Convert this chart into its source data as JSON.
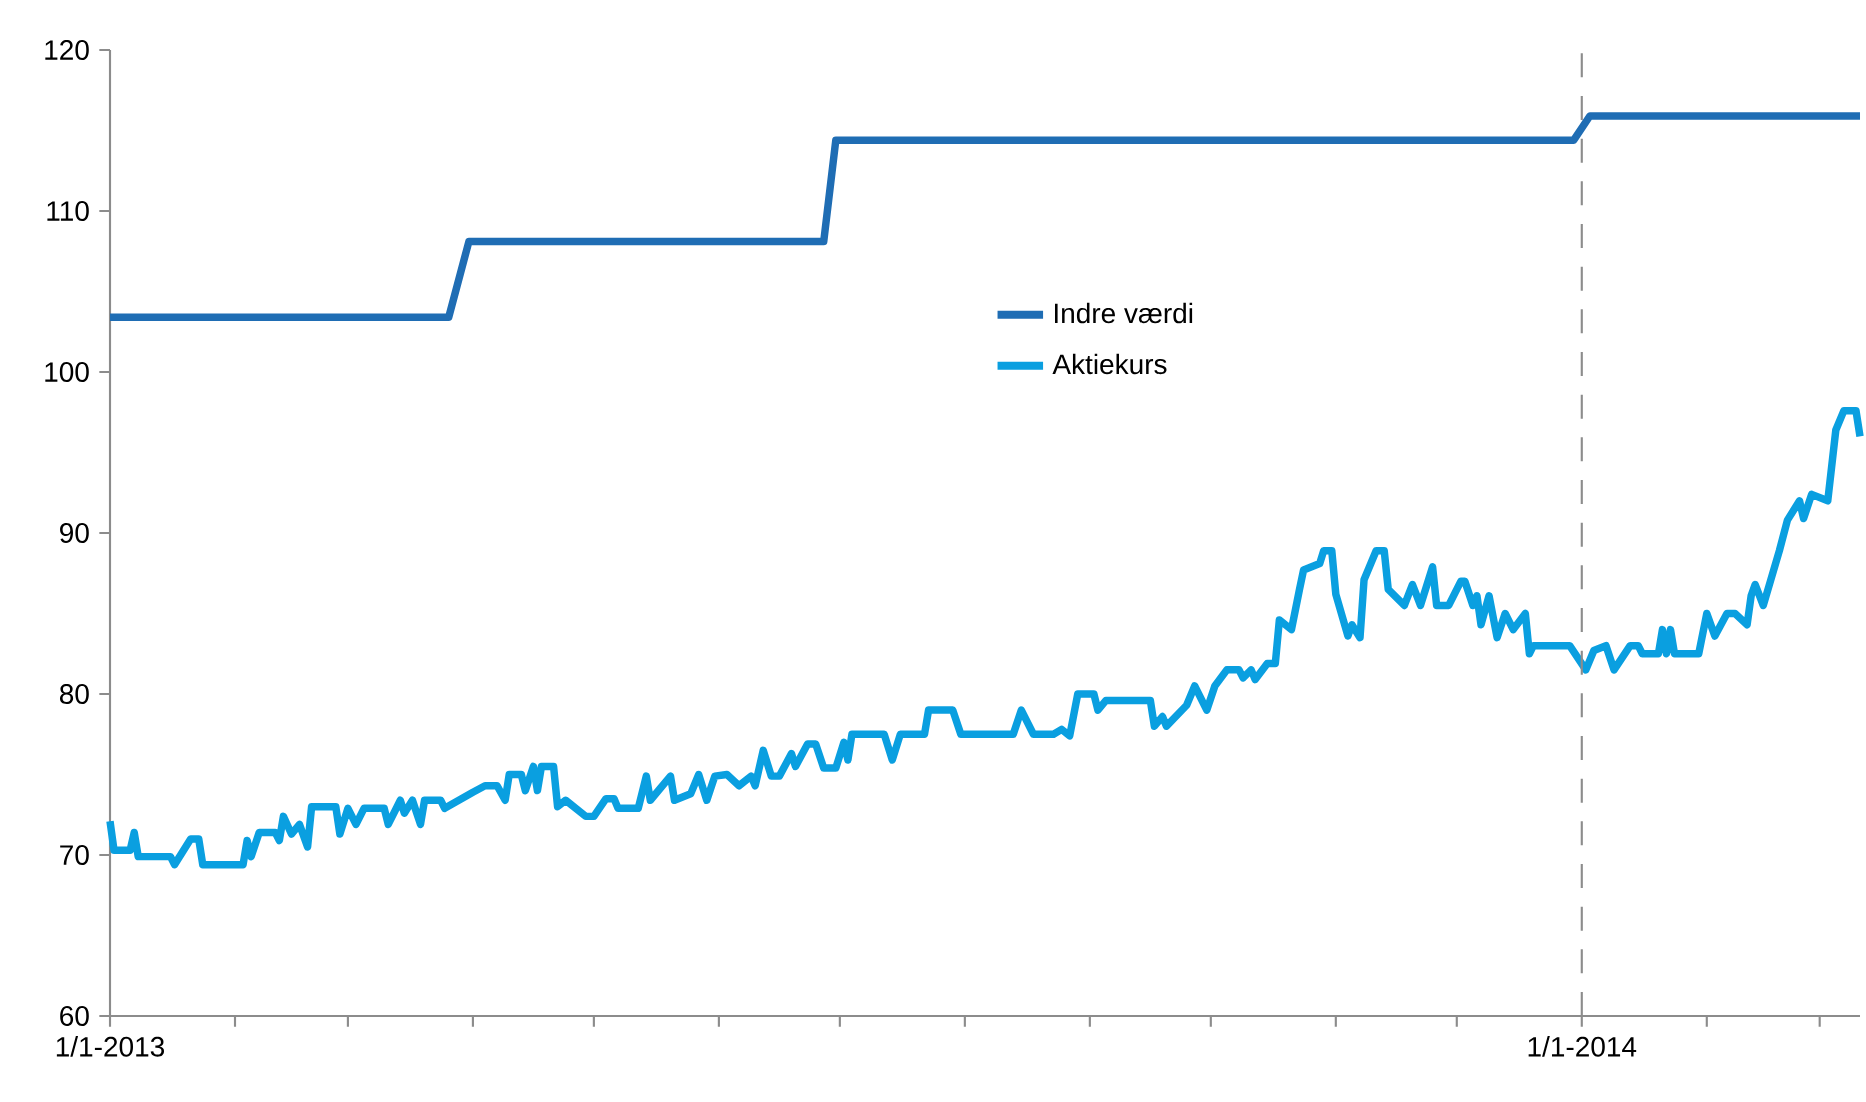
{
  "chart_data": {
    "type": "line",
    "xlim": [
      "2013-01-01",
      "2014-03-11"
    ],
    "ylim": [
      60,
      120
    ],
    "yticks": [
      60,
      70,
      80,
      90,
      100,
      110,
      120
    ],
    "xticks": [
      {
        "value": "2013-01-01",
        "label": "1/1-2013"
      },
      {
        "value": "2013-02-01",
        "label": null
      },
      {
        "value": "2013-03-01",
        "label": null
      },
      {
        "value": "2013-04-01",
        "label": null
      },
      {
        "value": "2013-05-01",
        "label": null
      },
      {
        "value": "2013-06-01",
        "label": null
      },
      {
        "value": "2013-07-01",
        "label": null
      },
      {
        "value": "2013-08-01",
        "label": null
      },
      {
        "value": "2013-09-01",
        "label": null
      },
      {
        "value": "2013-10-01",
        "label": null
      },
      {
        "value": "2013-11-01",
        "label": null
      },
      {
        "value": "2013-12-01",
        "label": null
      },
      {
        "value": "2014-01-01",
        "label": "1/1-2014"
      },
      {
        "value": "2014-02-01",
        "label": null
      },
      {
        "value": "2014-03-01",
        "label": null
      }
    ],
    "grid": false,
    "legend": "center",
    "marker": "none",
    "line_style": "solid",
    "ref_lines": [
      {
        "axis": "x",
        "value": "2014-01-01",
        "color": "#8c8c8c",
        "line_style": "dashed"
      }
    ],
    "series": [
      {
        "name": "Indre værdi",
        "color": "#1f6db4",
        "x": [
          "2013-01-01",
          "2013-03-26",
          "2013-03-31",
          "2013-06-27",
          "2013-06-30",
          "2013-12-30",
          "2014-01-03",
          "2014-03-11"
        ],
        "values": [
          103.4,
          103.4,
          108.1,
          108.1,
          114.4,
          114.4,
          115.9,
          115.9
        ]
      },
      {
        "name": "Aktiekurs",
        "color": "#0a9fe0",
        "x": [
          "2013-01-01",
          "2013-01-02",
          "2013-01-06",
          "2013-01-07",
          "2013-01-08",
          "2013-01-16",
          "2013-01-17",
          "2013-01-21",
          "2013-01-23",
          "2013-01-24",
          "2013-02-03",
          "2013-02-04",
          "2013-02-05",
          "2013-02-07",
          "2013-02-11",
          "2013-02-12",
          "2013-02-13",
          "2013-02-15",
          "2013-02-17",
          "2013-02-19",
          "2013-02-20",
          "2013-02-26",
          "2013-02-27",
          "2013-03-01",
          "2013-03-03",
          "2013-03-05",
          "2013-03-10",
          "2013-03-11",
          "2013-03-14",
          "2013-03-15",
          "2013-03-17",
          "2013-03-19",
          "2013-03-20",
          "2013-03-24",
          "2013-03-25",
          "2013-04-01",
          "2013-04-04",
          "2013-04-07",
          "2013-04-09",
          "2013-04-10",
          "2013-04-13",
          "2013-04-14",
          "2013-04-16",
          "2013-04-17",
          "2013-04-18",
          "2013-04-21",
          "2013-04-22",
          "2013-04-24",
          "2013-04-29",
          "2013-05-01",
          "2013-05-04",
          "2013-05-06",
          "2013-05-07",
          "2013-05-12",
          "2013-05-14",
          "2013-05-15",
          "2013-05-20",
          "2013-05-21",
          "2013-05-25",
          "2013-05-27",
          "2013-05-29",
          "2013-05-31",
          "2013-06-03",
          "2013-06-06",
          "2013-06-09",
          "2013-06-10",
          "2013-06-12",
          "2013-06-14",
          "2013-06-16",
          "2013-06-19",
          "2013-06-20",
          "2013-06-23",
          "2013-06-25",
          "2013-06-27",
          "2013-06-30",
          "2013-07-02",
          "2013-07-03",
          "2013-07-04",
          "2013-07-12",
          "2013-07-14",
          "2013-07-16",
          "2013-07-22",
          "2013-07-23",
          "2013-07-29",
          "2013-07-31",
          "2013-08-13",
          "2013-08-15",
          "2013-08-18",
          "2013-08-23",
          "2013-08-25",
          "2013-08-27",
          "2013-08-29",
          "2013-09-02",
          "2013-09-03",
          "2013-09-05",
          "2013-09-16",
          "2013-09-17",
          "2013-09-19",
          "2013-09-20",
          "2013-09-25",
          "2013-09-27",
          "2013-09-30",
          "2013-10-02",
          "2013-10-05",
          "2013-10-08",
          "2013-10-09",
          "2013-10-11",
          "2013-10-12",
          "2013-10-15",
          "2013-10-17",
          "2013-10-18",
          "2013-10-21",
          "2013-10-23",
          "2013-10-24",
          "2013-10-28",
          "2013-10-29",
          "2013-10-31",
          "2013-11-01",
          "2013-11-04",
          "2013-11-05",
          "2013-11-07",
          "2013-11-08",
          "2013-11-11",
          "2013-11-13",
          "2013-11-14",
          "2013-11-18",
          "2013-11-20",
          "2013-11-22",
          "2013-11-25",
          "2013-11-26",
          "2013-11-29",
          "2013-12-02",
          "2013-12-03",
          "2013-12-05",
          "2013-12-06",
          "2013-12-07",
          "2013-12-09",
          "2013-12-11",
          "2013-12-13",
          "2013-12-15",
          "2013-12-18",
          "2013-12-19",
          "2013-12-20",
          "2013-12-29",
          "2014-01-02",
          "2014-01-04",
          "2014-01-07",
          "2014-01-09",
          "2014-01-13",
          "2014-01-15",
          "2014-01-16",
          "2014-01-20",
          "2014-01-21",
          "2014-01-22",
          "2014-01-23",
          "2014-01-24",
          "2014-01-30",
          "2014-02-01",
          "2014-02-03",
          "2014-02-06",
          "2014-02-08",
          "2014-02-11",
          "2014-02-12",
          "2014-02-13",
          "2014-02-15",
          "2014-02-19",
          "2014-02-21",
          "2014-02-24",
          "2014-02-25",
          "2014-02-27",
          "2014-03-03",
          "2014-03-05",
          "2014-03-07",
          "2014-03-10",
          "2014-03-11"
        ],
        "values": [
          72.1,
          70.3,
          70.3,
          71.4,
          69.9,
          69.9,
          69.4,
          71.0,
          71.0,
          69.4,
          69.4,
          70.9,
          69.9,
          71.4,
          71.4,
          70.9,
          72.4,
          71.3,
          71.9,
          70.5,
          73.0,
          73.0,
          71.3,
          72.9,
          71.9,
          72.9,
          72.9,
          71.9,
          73.4,
          72.6,
          73.4,
          71.9,
          73.4,
          73.4,
          72.9,
          73.9,
          74.3,
          74.3,
          73.4,
          75.0,
          75.0,
          74.0,
          75.5,
          74.0,
          75.5,
          75.5,
          73.0,
          73.4,
          72.4,
          72.4,
          73.5,
          73.5,
          72.9,
          72.9,
          74.9,
          73.4,
          74.9,
          73.4,
          73.8,
          75.0,
          73.4,
          74.9,
          75.0,
          74.3,
          74.9,
          74.3,
          76.5,
          74.9,
          74.9,
          76.3,
          75.5,
          76.9,
          76.9,
          75.4,
          75.4,
          77.0,
          75.9,
          77.5,
          77.5,
          75.9,
          77.5,
          77.5,
          79.0,
          79.0,
          77.5,
          77.5,
          79.0,
          77.5,
          77.5,
          77.8,
          77.4,
          80.0,
          80.0,
          79.0,
          79.6,
          79.6,
          78.0,
          78.6,
          78.0,
          79.3,
          80.5,
          79.0,
          80.5,
          81.5,
          81.5,
          81.0,
          81.5,
          80.9,
          81.9,
          81.9,
          84.6,
          84.0,
          86.5,
          87.7,
          88.1,
          88.9,
          88.9,
          86.2,
          83.6,
          84.3,
          83.5,
          87.1,
          88.9,
          88.9,
          86.5,
          85.5,
          86.8,
          85.5,
          87.9,
          85.5,
          85.5,
          87.0,
          87.0,
          85.5,
          86.1,
          84.3,
          86.1,
          83.5,
          85.0,
          84.0,
          85.0,
          82.5,
          83.0,
          83.0,
          81.5,
          82.7,
          83.0,
          81.5,
          83.0,
          83.0,
          82.5,
          82.5,
          84.0,
          82.5,
          84.0,
          82.5,
          82.5,
          85.0,
          83.6,
          85.0,
          85.0,
          84.3,
          86.1,
          86.8,
          85.5,
          88.9,
          90.8,
          92.0,
          90.9,
          92.4,
          92.0,
          96.4,
          97.6,
          97.6,
          96.0
        ]
      }
    ]
  }
}
